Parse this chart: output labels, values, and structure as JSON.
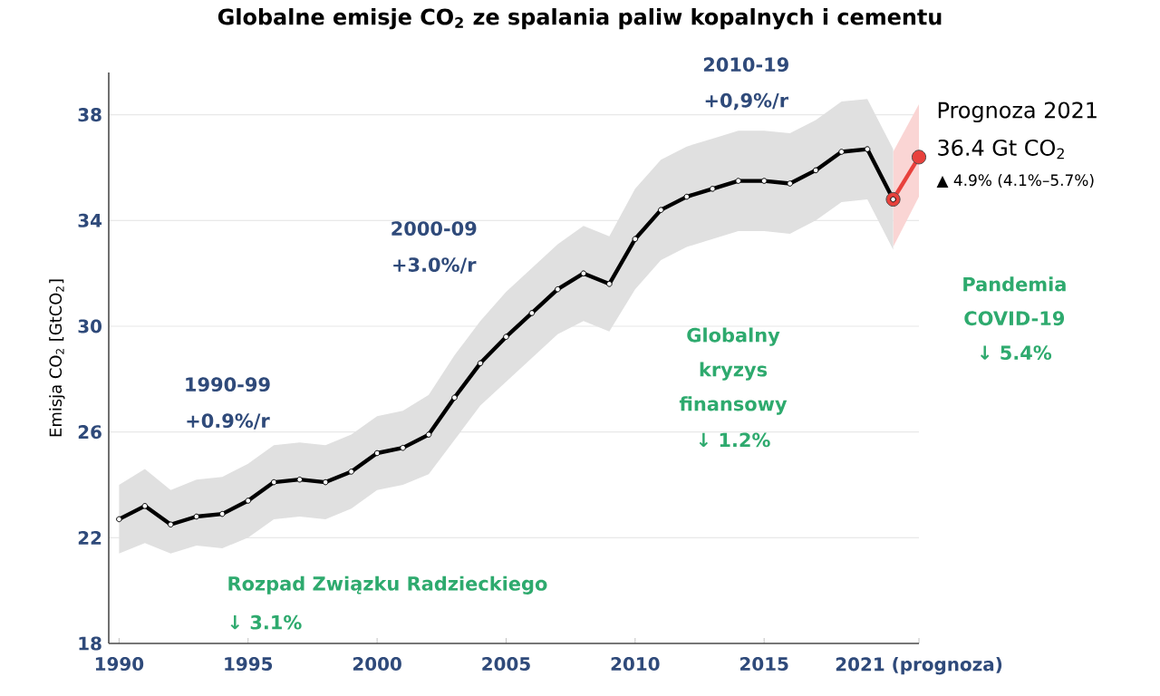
{
  "chart_data": {
    "type": "line",
    "title": "Globalne emisje CO$_{2}$ ze spalania paliw kopalnych i cementu",
    "ylabel": "Emisja CO$_{2}$ [GtCO$_{2}$]",
    "xlim": [
      1989.6,
      2021
    ],
    "ylim": [
      18,
      39.6
    ],
    "xticks": [
      1990,
      1995,
      2000,
      2005,
      2010,
      2015,
      {
        "value": 2021,
        "label": "2021 (prognoza)"
      }
    ],
    "yticks": [
      18,
      22,
      26,
      30,
      34,
      38
    ],
    "grid": "y",
    "marker": "circle",
    "line_style": "solid",
    "series": [
      {
        "color": "#000000",
        "x": [
          1990,
          1991,
          1992,
          1993,
          1994,
          1995,
          1996,
          1997,
          1998,
          1999,
          2000,
          2001,
          2002,
          2003,
          2004,
          2005,
          2006,
          2007,
          2008,
          2009,
          2010,
          2011,
          2012,
          2013,
          2014,
          2015,
          2016,
          2017,
          2018,
          2019,
          2020
        ],
        "values": [
          22.7,
          23.2,
          22.5,
          22.8,
          22.9,
          23.4,
          24.1,
          24.2,
          24.1,
          24.5,
          25.2,
          25.4,
          25.9,
          27.3,
          28.6,
          29.6,
          30.5,
          31.4,
          32.0,
          31.6,
          33.3,
          34.4,
          34.9,
          35.2,
          35.5,
          35.5,
          35.4,
          35.9,
          36.6,
          36.7,
          34.8
        ],
        "lower": [
          21.4,
          21.8,
          21.4,
          21.7,
          21.6,
          22.0,
          22.7,
          22.8,
          22.7,
          23.1,
          23.8,
          24.0,
          24.4,
          25.7,
          27.0,
          27.9,
          28.8,
          29.7,
          30.2,
          29.8,
          31.4,
          32.5,
          33.0,
          33.3,
          33.6,
          33.6,
          33.5,
          34.0,
          34.7,
          34.8,
          32.9
        ],
        "upper": [
          24.0,
          24.6,
          23.8,
          24.2,
          24.3,
          24.8,
          25.5,
          25.6,
          25.5,
          25.9,
          26.6,
          26.8,
          27.4,
          28.9,
          30.2,
          31.3,
          32.2,
          33.1,
          33.8,
          33.4,
          35.2,
          36.3,
          36.8,
          37.1,
          37.4,
          37.4,
          37.3,
          37.8,
          38.5,
          38.6,
          36.7
        ]
      },
      {
        "color": "#e8413c",
        "x": [
          2020,
          2021
        ],
        "values": [
          34.8,
          36.4
        ],
        "lower": [
          33.0,
          34.9
        ],
        "upper": [
          36.6,
          38.4
        ]
      }
    ],
    "annotations": [
      "1990-99",
      "+0.9%/r",
      "2000-09",
      "+3.0%/r",
      "2010-19",
      "+0,9%/r",
      "Rozpad Związku Radzieckiego",
      "↓ 3.1%",
      "Globalny",
      "kryzys",
      "finansowy",
      "↓ 1.2%",
      "Pandemia",
      "COVID-19",
      "↓ 5.4%",
      "Prognoza 2021",
      "36.4 Gt CO$_{2}$",
      "▲ 4.9% (4.1%–5.7%)"
    ]
  }
}
